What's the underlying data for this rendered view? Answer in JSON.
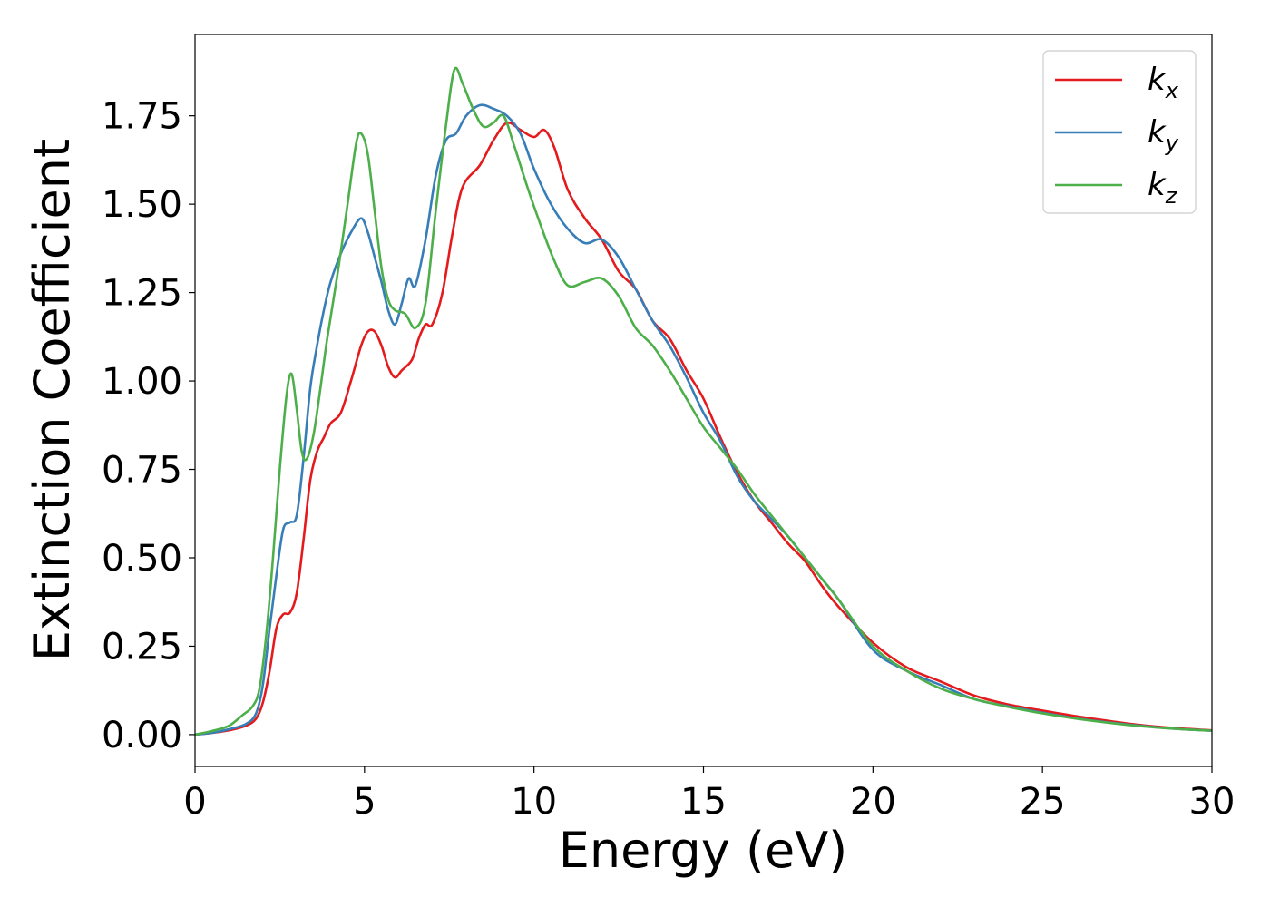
{
  "chart_data": {
    "type": "line",
    "title": "",
    "xlabel": "Energy (eV)",
    "ylabel": "Extinction Coefficient",
    "xlim": [
      0,
      30
    ],
    "ylim": [
      -0.09,
      1.98
    ],
    "xticks": [
      0,
      5,
      10,
      15,
      20,
      25,
      30
    ],
    "xtick_labels": [
      "0",
      "5",
      "10",
      "15",
      "20",
      "25",
      "30"
    ],
    "yticks": [
      0.0,
      0.25,
      0.5,
      0.75,
      1.0,
      1.25,
      1.5,
      1.75
    ],
    "ytick_labels": [
      "0.00",
      "0.25",
      "0.50",
      "0.75",
      "1.00",
      "1.25",
      "1.50",
      "1.75"
    ],
    "grid": false,
    "legend_position": "top-right",
    "series": [
      {
        "name": "kx",
        "label_main": "k",
        "label_sub": "x",
        "color": "#e41a1c",
        "x": [
          0,
          0.5,
          1.0,
          1.5,
          1.8,
          2.0,
          2.2,
          2.4,
          2.6,
          2.8,
          3.0,
          3.2,
          3.4,
          3.6,
          3.8,
          4.0,
          4.3,
          4.6,
          4.9,
          5.1,
          5.3,
          5.5,
          5.7,
          5.9,
          6.1,
          6.4,
          6.6,
          6.8,
          7.0,
          7.3,
          7.6,
          7.9,
          8.4,
          8.8,
          9.2,
          9.6,
          10.0,
          10.3,
          10.6,
          11.0,
          11.5,
          12.0,
          12.5,
          13.0,
          13.5,
          14.0,
          14.5,
          15.0,
          15.5,
          16.0,
          16.5,
          17.0,
          17.5,
          18.0,
          18.5,
          19.0,
          20.0,
          21.0,
          22.0,
          23.0,
          24.0,
          25.0,
          26.0,
          27.0,
          28.0,
          29.0,
          30.0
        ],
        "y": [
          0.0,
          0.005,
          0.012,
          0.025,
          0.045,
          0.09,
          0.18,
          0.3,
          0.34,
          0.345,
          0.4,
          0.55,
          0.72,
          0.8,
          0.84,
          0.88,
          0.91,
          1.0,
          1.1,
          1.14,
          1.14,
          1.1,
          1.04,
          1.01,
          1.03,
          1.06,
          1.12,
          1.16,
          1.16,
          1.25,
          1.42,
          1.55,
          1.61,
          1.68,
          1.73,
          1.71,
          1.69,
          1.71,
          1.66,
          1.54,
          1.46,
          1.4,
          1.31,
          1.26,
          1.17,
          1.12,
          1.03,
          0.95,
          0.84,
          0.74,
          0.66,
          0.6,
          0.54,
          0.49,
          0.42,
          0.36,
          0.26,
          0.19,
          0.15,
          0.11,
          0.085,
          0.068,
          0.052,
          0.038,
          0.026,
          0.018,
          0.012
        ]
      },
      {
        "name": "ky",
        "label_main": "k",
        "label_sub": "y",
        "color": "#377eb8",
        "x": [
          0,
          0.5,
          1.0,
          1.5,
          1.8,
          2.0,
          2.2,
          2.4,
          2.6,
          2.8,
          3.0,
          3.2,
          3.4,
          3.6,
          3.8,
          4.0,
          4.3,
          4.6,
          4.9,
          5.1,
          5.3,
          5.5,
          5.7,
          5.9,
          6.1,
          6.3,
          6.5,
          6.8,
          7.1,
          7.4,
          7.7,
          8.0,
          8.4,
          8.8,
          9.2,
          9.6,
          10.0,
          10.5,
          11.0,
          11.5,
          12.0,
          12.5,
          13.0,
          13.5,
          14.0,
          14.5,
          15.0,
          15.5,
          16.0,
          16.5,
          17.0,
          17.5,
          18.0,
          18.5,
          19.0,
          20.0,
          21.0,
          22.0,
          23.0,
          24.0,
          25.0,
          26.0,
          27.0,
          28.0,
          29.0,
          30.0
        ],
        "y": [
          0.0,
          0.005,
          0.015,
          0.03,
          0.06,
          0.14,
          0.3,
          0.45,
          0.58,
          0.6,
          0.62,
          0.78,
          0.98,
          1.1,
          1.2,
          1.28,
          1.36,
          1.42,
          1.46,
          1.42,
          1.35,
          1.28,
          1.2,
          1.16,
          1.22,
          1.29,
          1.27,
          1.4,
          1.58,
          1.68,
          1.7,
          1.75,
          1.78,
          1.77,
          1.75,
          1.7,
          1.6,
          1.5,
          1.43,
          1.39,
          1.4,
          1.35,
          1.26,
          1.17,
          1.1,
          1.01,
          0.91,
          0.83,
          0.73,
          0.66,
          0.61,
          0.56,
          0.5,
          0.44,
          0.38,
          0.24,
          0.18,
          0.14,
          0.1,
          0.08,
          0.062,
          0.046,
          0.034,
          0.024,
          0.016,
          0.011
        ]
      },
      {
        "name": "kz",
        "label_main": "k",
        "label_sub": "z",
        "color": "#4daf4a",
        "x": [
          0,
          0.5,
          1.0,
          1.4,
          1.7,
          1.9,
          2.1,
          2.3,
          2.5,
          2.7,
          2.85,
          3.0,
          3.15,
          3.3,
          3.5,
          3.7,
          3.9,
          4.2,
          4.5,
          4.75,
          4.9,
          5.1,
          5.3,
          5.5,
          5.7,
          5.9,
          6.2,
          6.5,
          6.8,
          7.1,
          7.4,
          7.65,
          7.9,
          8.2,
          8.5,
          8.8,
          9.1,
          9.4,
          9.8,
          10.2,
          10.6,
          11.0,
          11.5,
          12.0,
          12.5,
          13.0,
          13.5,
          14.0,
          14.5,
          15.0,
          15.5,
          16.0,
          16.5,
          17.0,
          17.5,
          18.0,
          18.5,
          19.0,
          20.0,
          21.0,
          22.0,
          23.0,
          24.0,
          25.0,
          26.0,
          27.0,
          28.0,
          29.0,
          30.0
        ],
        "y": [
          0.0,
          0.01,
          0.025,
          0.055,
          0.08,
          0.13,
          0.28,
          0.5,
          0.75,
          0.96,
          1.02,
          0.92,
          0.8,
          0.78,
          0.85,
          0.98,
          1.12,
          1.3,
          1.5,
          1.67,
          1.7,
          1.64,
          1.48,
          1.32,
          1.23,
          1.2,
          1.19,
          1.15,
          1.22,
          1.48,
          1.72,
          1.88,
          1.84,
          1.77,
          1.72,
          1.73,
          1.75,
          1.67,
          1.55,
          1.44,
          1.34,
          1.27,
          1.28,
          1.29,
          1.24,
          1.15,
          1.1,
          1.03,
          0.95,
          0.87,
          0.81,
          0.75,
          0.68,
          0.62,
          0.56,
          0.5,
          0.44,
          0.38,
          0.25,
          0.18,
          0.13,
          0.1,
          0.078,
          0.06,
          0.045,
          0.033,
          0.023,
          0.016,
          0.011
        ]
      }
    ]
  }
}
